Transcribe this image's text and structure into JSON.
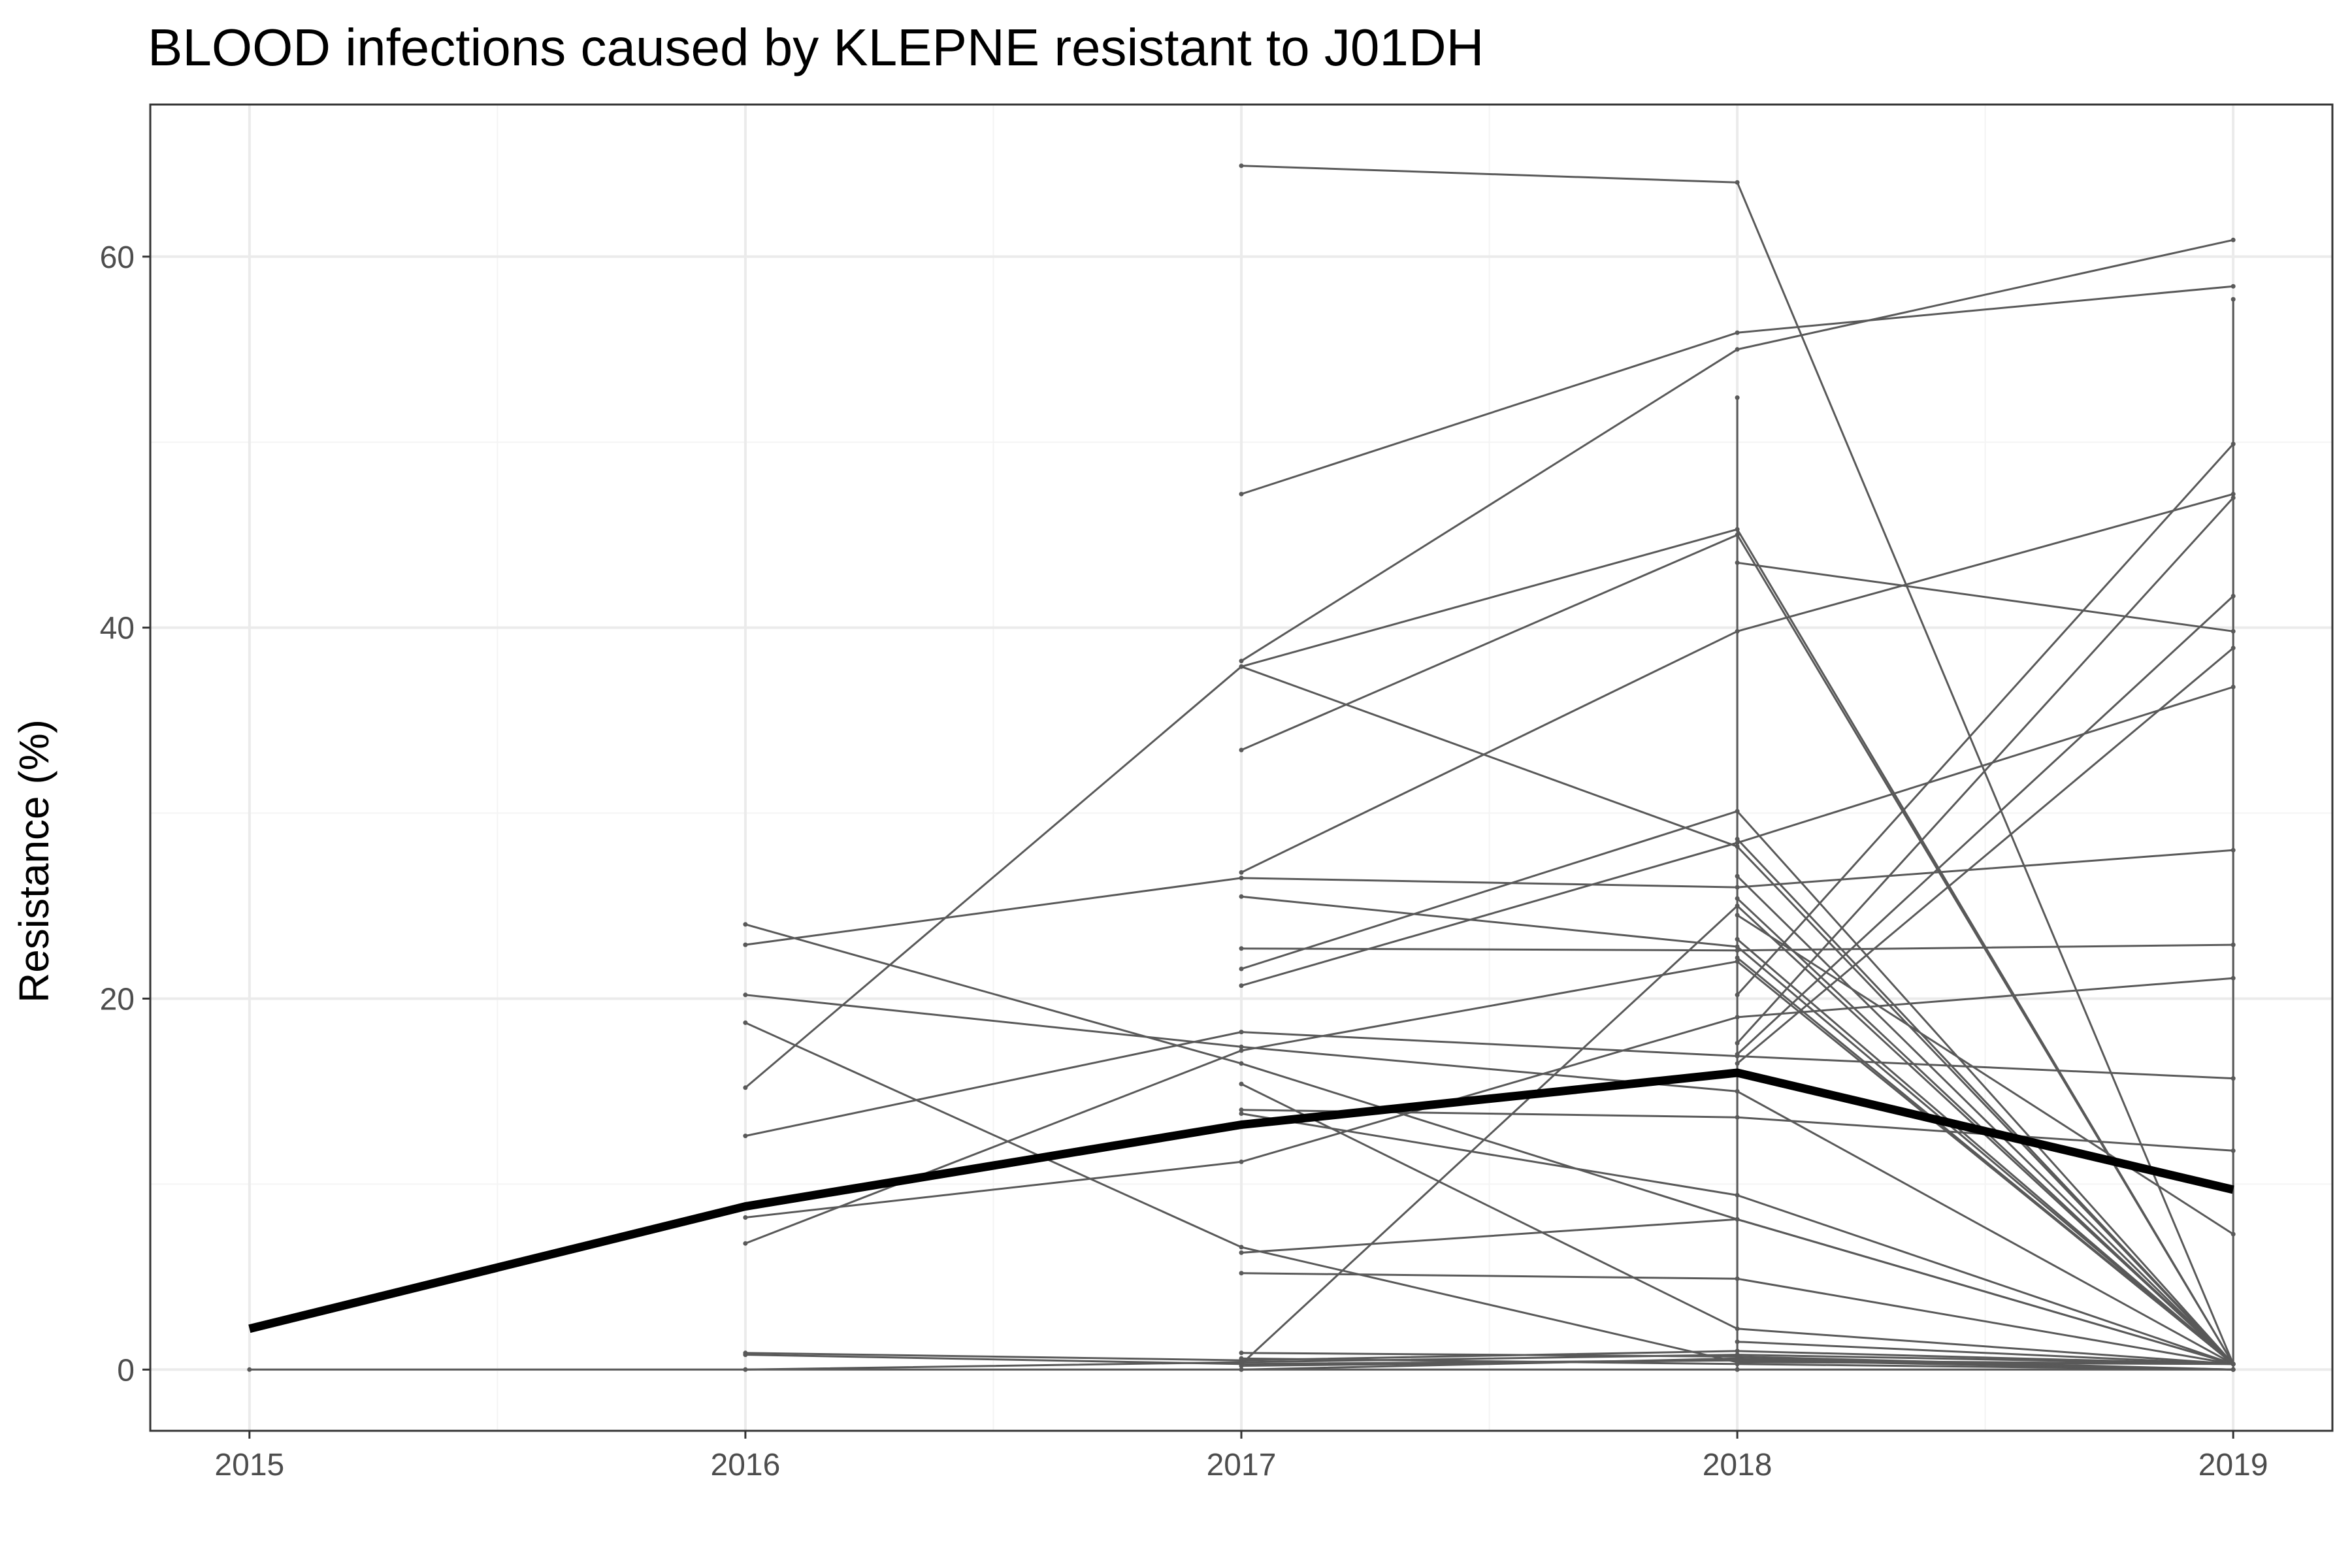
{
  "chart_data": {
    "type": "line",
    "title": "BLOOD infections caused by KLEPNE resistant to J01DH",
    "xlabel": "",
    "ylabel": "Resistance (%)",
    "xlim": [
      2014.8,
      2019.2
    ],
    "ylim": [
      -3.3,
      68.2
    ],
    "x_ticks": [
      2015,
      2016,
      2017,
      2018,
      2019
    ],
    "x_tick_labels": [
      "2015",
      "2016",
      "2017",
      "2018",
      "2019"
    ],
    "y_ticks": [
      0,
      20,
      40,
      60
    ],
    "y_tick_labels": [
      "0",
      "20",
      "40",
      "60"
    ],
    "grid": true,
    "legend": "none",
    "colors": {
      "series": "#595959",
      "mean": "#000000",
      "grid_major": "#ebebeb",
      "grid_minor": "#f4f4f4",
      "panel_border": "#333333"
    },
    "mean_series": {
      "x": [
        2015,
        2016,
        2017,
        2018,
        2019
      ],
      "y": [
        2.2,
        8.8,
        13.2,
        16.0,
        9.7
      ]
    },
    "series": [
      {
        "x": [
          2017,
          2018,
          2019
        ],
        "y": [
          64.9,
          64.0,
          0.3
        ]
      },
      {
        "x": [
          2017,
          2018,
          2019
        ],
        "y": [
          47.2,
          55.9,
          58.4
        ]
      },
      {
        "x": [
          2017,
          2018,
          2019
        ],
        "y": [
          38.2,
          55.0,
          60.9
        ]
      },
      {
        "x": [
          2016,
          2017,
          2018,
          2019
        ],
        "y": [
          15.2,
          37.9,
          45.3,
          0.3
        ]
      },
      {
        "x": [
          2017,
          2018,
          2019
        ],
        "y": [
          33.4,
          45.0,
          0.3
        ]
      },
      {
        "x": [
          2017,
          2018,
          2019
        ],
        "y": [
          37.9,
          28.2,
          0.3
        ]
      },
      {
        "x": [
          2017,
          2018,
          2019
        ],
        "y": [
          26.8,
          39.8,
          47.2
        ]
      },
      {
        "x": [
          2016,
          2017,
          2018,
          2019
        ],
        "y": [
          22.9,
          26.5,
          26.0,
          28.0
        ]
      },
      {
        "x": [
          2017,
          2018,
          2019
        ],
        "y": [
          21.6,
          30.1,
          0.3
        ]
      },
      {
        "x": [
          2017,
          2018,
          2019
        ],
        "y": [
          20.7,
          28.4,
          36.8
        ]
      },
      {
        "x": [
          2017,
          2018,
          2019
        ],
        "y": [
          25.5,
          22.8,
          0.3
        ]
      },
      {
        "x": [
          2017,
          2018,
          2019
        ],
        "y": [
          22.7,
          22.6,
          22.9
        ]
      },
      {
        "x": [
          2016,
          2017,
          2018,
          2019
        ],
        "y": [
          24.0,
          16.5,
          8.1,
          0.3
        ]
      },
      {
        "x": [
          2016,
          2017,
          2018,
          2019
        ],
        "y": [
          20.2,
          17.4,
          15.0,
          0.3
        ]
      },
      {
        "x": [
          2016,
          2017,
          2018,
          2019
        ],
        "y": [
          18.7,
          6.6,
          0.4,
          0.3
        ]
      },
      {
        "x": [
          2016,
          2017,
          2018,
          2019
        ],
        "y": [
          12.6,
          18.2,
          16.9,
          15.7
        ]
      },
      {
        "x": [
          2016,
          2017,
          2018,
          2019
        ],
        "y": [
          8.2,
          11.2,
          19.0,
          21.1
        ]
      },
      {
        "x": [
          2016,
          2017,
          2018,
          2019
        ],
        "y": [
          6.8,
          17.2,
          22.0,
          0.3
        ]
      },
      {
        "x": [
          2017,
          2018,
          2019
        ],
        "y": [
          15.4,
          2.2,
          0.3
        ]
      },
      {
        "x": [
          2017,
          2018,
          2019
        ],
        "y": [
          14.0,
          13.6,
          11.8
        ]
      },
      {
        "x": [
          2017,
          2018,
          2019
        ],
        "y": [
          13.8,
          9.4,
          0.3
        ]
      },
      {
        "x": [
          2017,
          2018,
          2019
        ],
        "y": [
          6.3,
          8.1,
          0.3
        ]
      },
      {
        "x": [
          2017,
          2018,
          2019
        ],
        "y": [
          5.2,
          4.9,
          0.3
        ]
      },
      {
        "x": [
          2017,
          2018,
          2019
        ],
        "y": [
          0.3,
          25.0,
          0.3
        ]
      },
      {
        "x": [
          2018,
          2019
        ],
        "y": [
          43.5,
          39.8
        ]
      },
      {
        "x": [
          2018,
          2019
        ],
        "y": [
          28.6,
          0.3
        ]
      },
      {
        "x": [
          2018,
          2019
        ],
        "y": [
          20.2,
          49.9
        ]
      },
      {
        "x": [
          2018,
          2019
        ],
        "y": [
          17.6,
          47.0
        ]
      },
      {
        "x": [
          2018,
          2019
        ],
        "y": [
          17.0,
          41.7
        ]
      },
      {
        "x": [
          2018,
          2019
        ],
        "y": [
          16.5,
          38.9
        ]
      },
      {
        "x": [
          2018,
          2019
        ],
        "y": [
          26.6,
          0.3
        ]
      },
      {
        "x": [
          2018,
          2019
        ],
        "y": [
          25.4,
          0.3
        ]
      },
      {
        "x": [
          2018,
          2019
        ],
        "y": [
          24.5,
          7.3
        ]
      },
      {
        "x": [
          2018,
          2019
        ],
        "y": [
          23.2,
          0.3
        ]
      },
      {
        "x": [
          2018,
          2019
        ],
        "y": [
          22.2,
          0.3
        ]
      },
      {
        "x": [
          2018,
          2019
        ],
        "y": [
          1.5,
          0.3
        ]
      },
      {
        "x": [
          2016,
          2017,
          2018,
          2019
        ],
        "y": [
          0.9,
          0.5,
          1.0,
          0.3
        ]
      },
      {
        "x": [
          2016,
          2017,
          2018,
          2019
        ],
        "y": [
          0.8,
          0.3,
          0.5,
          0.3
        ]
      },
      {
        "x": [
          2016,
          2017,
          2018,
          2019
        ],
        "y": [
          0.0,
          0.4,
          0.8,
          0.3
        ]
      },
      {
        "x": [
          2017,
          2018,
          2019
        ],
        "y": [
          0.9,
          0.7,
          0.0
        ]
      },
      {
        "x": [
          2017,
          2018,
          2019
        ],
        "y": [
          0.6,
          0.3,
          0.0
        ]
      },
      {
        "x": [
          2017,
          2018,
          2019
        ],
        "y": [
          0.2,
          0.5,
          0.0
        ]
      },
      {
        "x": [
          2017,
          2018,
          2019
        ],
        "y": [
          0.0,
          0.6,
          0.0
        ]
      },
      {
        "x": [
          2015,
          2016,
          2017,
          2018,
          2019
        ],
        "y": [
          0.0,
          0.0,
          0.0,
          0.0,
          0.0
        ]
      },
      {
        "x": [
          2018,
          2018
        ],
        "y": [
          0.0,
          52.4
        ]
      },
      {
        "x": [
          2019,
          2019
        ],
        "y": [
          0.0,
          57.7
        ]
      }
    ]
  }
}
